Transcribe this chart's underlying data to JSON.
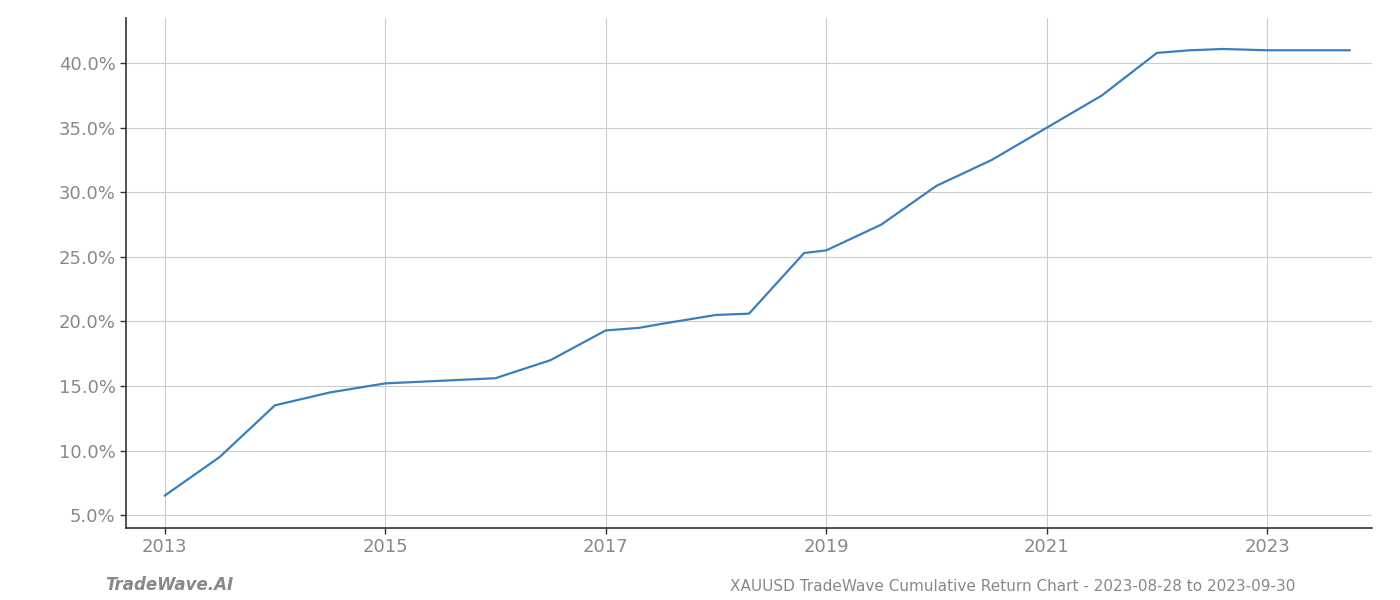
{
  "x_values": [
    2013.0,
    2013.5,
    2014.0,
    2014.5,
    2015.0,
    2015.5,
    2016.0,
    2016.5,
    2017.0,
    2017.3,
    2017.5,
    2018.0,
    2018.3,
    2018.8,
    2019.0,
    2019.5,
    2020.0,
    2020.5,
    2021.0,
    2021.5,
    2022.0,
    2022.3,
    2022.6,
    2023.0,
    2023.5,
    2023.75
  ],
  "y_values": [
    6.5,
    9.5,
    13.5,
    14.5,
    15.2,
    15.4,
    15.6,
    17.0,
    19.3,
    19.5,
    19.8,
    20.5,
    20.6,
    25.3,
    25.5,
    27.5,
    30.5,
    32.5,
    35.0,
    37.5,
    40.8,
    41.0,
    41.1,
    41.0,
    41.0,
    41.0
  ],
  "line_color": "#3a7ebf",
  "line_width": 1.6,
  "xlim": [
    2012.65,
    2023.95
  ],
  "ylim": [
    4.0,
    43.5
  ],
  "xticks": [
    2013,
    2015,
    2017,
    2019,
    2021,
    2023
  ],
  "yticks": [
    5.0,
    10.0,
    15.0,
    20.0,
    25.0,
    30.0,
    35.0,
    40.0
  ],
  "bottom_left_text": "TradeWave.AI",
  "bottom_right_text": "XAUUSD TradeWave Cumulative Return Chart - 2023-08-28 to 2023-09-30",
  "background_color": "#ffffff",
  "grid_color": "#cccccc",
  "spine_color": "#333333",
  "tick_label_color": "#888888",
  "bottom_text_color": "#888888",
  "bottom_left_fontsize": 12,
  "bottom_right_fontsize": 11,
  "tick_fontsize": 13
}
